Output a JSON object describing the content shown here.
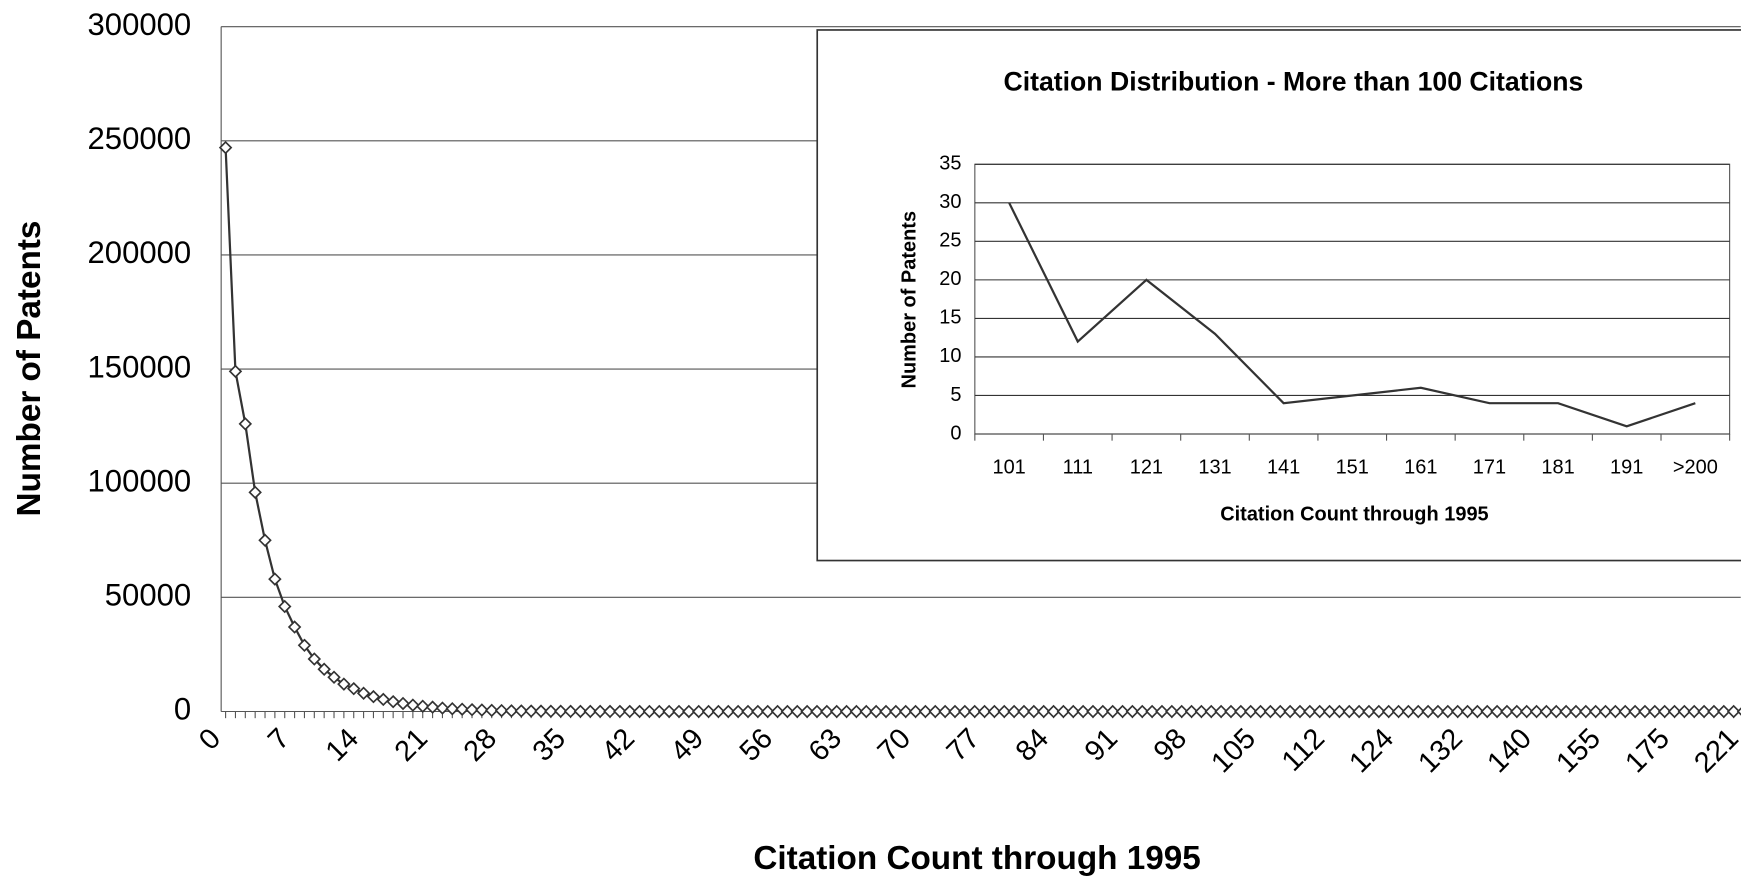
{
  "chart_data": [
    {
      "type": "line",
      "x_label": "Citation Count through 1995",
      "y_label": "Number of Patents",
      "categories": [
        0,
        null,
        null,
        null,
        null,
        null,
        null,
        7,
        null,
        null,
        null,
        null,
        null,
        null,
        14,
        null,
        null,
        null,
        null,
        null,
        null,
        21,
        null,
        null,
        null,
        null,
        null,
        null,
        28,
        null,
        null,
        null,
        null,
        null,
        null,
        35,
        null,
        null,
        null,
        null,
        null,
        null,
        42,
        null,
        null,
        null,
        null,
        null,
        null,
        49,
        null,
        null,
        null,
        null,
        null,
        null,
        56,
        null,
        null,
        null,
        null,
        null,
        null,
        63,
        null,
        null,
        null,
        null,
        null,
        null,
        70,
        null,
        null,
        null,
        null,
        null,
        null,
        77,
        null,
        null,
        null,
        null,
        null,
        null,
        84,
        null,
        null,
        null,
        null,
        null,
        null,
        91,
        null,
        null,
        null,
        null,
        null,
        null,
        98,
        null,
        null,
        null,
        null,
        null,
        null,
        105,
        null,
        null,
        null,
        null,
        null,
        null,
        112,
        null,
        null,
        null,
        null,
        null,
        null,
        124,
        null,
        null,
        null,
        null,
        null,
        null,
        132,
        null,
        null,
        null,
        null,
        null,
        null,
        140,
        null,
        null,
        null,
        null,
        null,
        null,
        155,
        null,
        null,
        null,
        null,
        null,
        null,
        175,
        null,
        null,
        null,
        null,
        null,
        null,
        221
      ],
      "series": [
        {
          "name": "Number of Patents",
          "color": "#333333",
          "values": [
            247000,
            149000,
            126000,
            96000,
            75000,
            58000,
            46000,
            37000,
            29000,
            23000,
            18500,
            15000,
            12000,
            10000,
            8000,
            6500,
            5300,
            4300,
            3500,
            2800,
            2300,
            1900,
            1500,
            1200,
            1000,
            800,
            650,
            500,
            400,
            300,
            250,
            200,
            150,
            120,
            100,
            80,
            70,
            60,
            50,
            40,
            35,
            30,
            25,
            20,
            18,
            16,
            14,
            12,
            10,
            9,
            8,
            7,
            6,
            5,
            5,
            4,
            4,
            3,
            3,
            3,
            2,
            2,
            2,
            2,
            2,
            1,
            1,
            1,
            1,
            1,
            1,
            1,
            1,
            1,
            1,
            1,
            1,
            1,
            1,
            1,
            1,
            1,
            1,
            1,
            1,
            1,
            1,
            1,
            1,
            1,
            1,
            1,
            1,
            1,
            1,
            1,
            1,
            1,
            1,
            1,
            1,
            1,
            1,
            1,
            1,
            1,
            1,
            1,
            1,
            1,
            1,
            1,
            1,
            1,
            1,
            1,
            1,
            1,
            1,
            1,
            1,
            1,
            1,
            1,
            1,
            1,
            1,
            1,
            1,
            1,
            1,
            1,
            1,
            1,
            1,
            1,
            1,
            1,
            1,
            1,
            1,
            1,
            1,
            1,
            1,
            1,
            1,
            1,
            1,
            1,
            1,
            1,
            1,
            1,
            1
          ]
        }
      ],
      "ylim": [
        0,
        300000
      ],
      "yticks": [
        0,
        50000,
        100000,
        150000,
        200000,
        250000,
        300000
      ],
      "grid": true,
      "marker": "diamond"
    },
    {
      "type": "line",
      "title": "Citation Distribution - More than 100 Citations",
      "x_label": "Citation Count through 1995",
      "y_label": "Number of Patents",
      "categories": [
        "101",
        "111",
        "121",
        "131",
        "141",
        "151",
        "161",
        "171",
        "181",
        "191",
        ">200"
      ],
      "series": [
        {
          "name": "Number of Patents",
          "color": "#333333",
          "values": [
            30,
            12,
            20,
            13,
            4,
            5,
            6,
            4,
            4,
            1,
            4
          ]
        }
      ],
      "ylim": [
        0,
        35
      ],
      "yticks": [
        0,
        5,
        10,
        15,
        20,
        25,
        30,
        35
      ],
      "grid": true
    }
  ]
}
